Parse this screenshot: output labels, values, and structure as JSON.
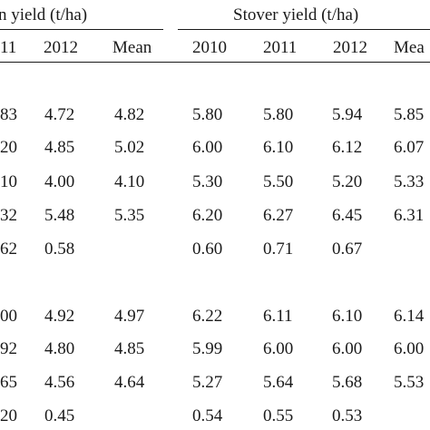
{
  "header": {
    "grain_group": "n yield (t/ha)",
    "stover_group": "Stover yield (t/ha)"
  },
  "columns": [
    "11",
    "2012",
    "Mean",
    "2010",
    "2011",
    "2012",
    "Mea"
  ],
  "rows": [
    [
      "83",
      "4.72",
      "4.82",
      "5.80",
      "5.80",
      "5.94",
      "5.85"
    ],
    [
      "20",
      "4.85",
      "5.02",
      "6.00",
      "6.10",
      "6.12",
      "6.07"
    ],
    [
      "10",
      "4.00",
      "4.10",
      "5.30",
      "5.50",
      "5.20",
      "5.33"
    ],
    [
      "32",
      "5.48",
      "5.35",
      "6.20",
      "6.27",
      "6.45",
      "6.31"
    ],
    [
      "62",
      "0.58",
      "",
      "0.60",
      "0.71",
      "0.67",
      ""
    ],
    [
      "00",
      "4.92",
      "4.97",
      "6.22",
      "6.11",
      "6.10",
      "6.14"
    ],
    [
      "92",
      "4.80",
      "4.85",
      "5.99",
      "6.00",
      "6.00",
      "6.00"
    ],
    [
      "65",
      "4.56",
      "4.64",
      "5.27",
      "5.64",
      "5.68",
      "5.53"
    ],
    [
      "20",
      "0.45",
      "",
      "0.54",
      "0.55",
      "0.53",
      ""
    ]
  ]
}
